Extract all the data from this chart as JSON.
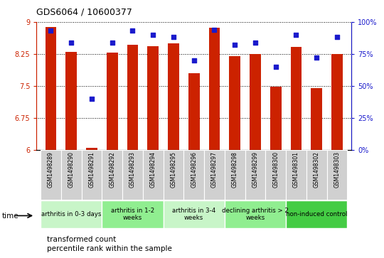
{
  "title": "GDS6064 / 10600377",
  "samples": [
    "GSM1498289",
    "GSM1498290",
    "GSM1498291",
    "GSM1498292",
    "GSM1498293",
    "GSM1498294",
    "GSM1498295",
    "GSM1498296",
    "GSM1498297",
    "GSM1498298",
    "GSM1498299",
    "GSM1498300",
    "GSM1498301",
    "GSM1498302",
    "GSM1498303"
  ],
  "bar_values": [
    8.88,
    8.3,
    6.05,
    8.28,
    8.47,
    8.43,
    8.5,
    7.8,
    8.87,
    8.2,
    8.25,
    7.47,
    8.42,
    7.45,
    8.25
  ],
  "dot_values": [
    93,
    84,
    40,
    84,
    93,
    90,
    88,
    70,
    94,
    82,
    84,
    65,
    90,
    72,
    88
  ],
  "bar_color": "#cc2200",
  "dot_color": "#1a1acc",
  "ylim_left": [
    6,
    9
  ],
  "ylim_right": [
    0,
    100
  ],
  "yticks_left": [
    6,
    6.75,
    7.5,
    8.25,
    9
  ],
  "yticks_right": [
    0,
    25,
    50,
    75,
    100
  ],
  "ytick_labels_right": [
    "0%",
    "25%",
    "50%",
    "75%",
    "100%"
  ],
  "groups": [
    {
      "label": "arthritis in 0-3 days",
      "start": 0,
      "end": 3,
      "color": "#c8f5c8"
    },
    {
      "label": "arthritis in 1-2\nweeks",
      "start": 3,
      "end": 6,
      "color": "#90ee90"
    },
    {
      "label": "arthritis in 3-4\nweeks",
      "start": 6,
      "end": 9,
      "color": "#c8f5c8"
    },
    {
      "label": "declining arthritis > 2\nweeks",
      "start": 9,
      "end": 12,
      "color": "#90ee90"
    },
    {
      "label": "non-induced control",
      "start": 12,
      "end": 15,
      "color": "#44cc44"
    }
  ],
  "legend_bar_label": "transformed count",
  "legend_dot_label": "percentile rank within the sample"
}
